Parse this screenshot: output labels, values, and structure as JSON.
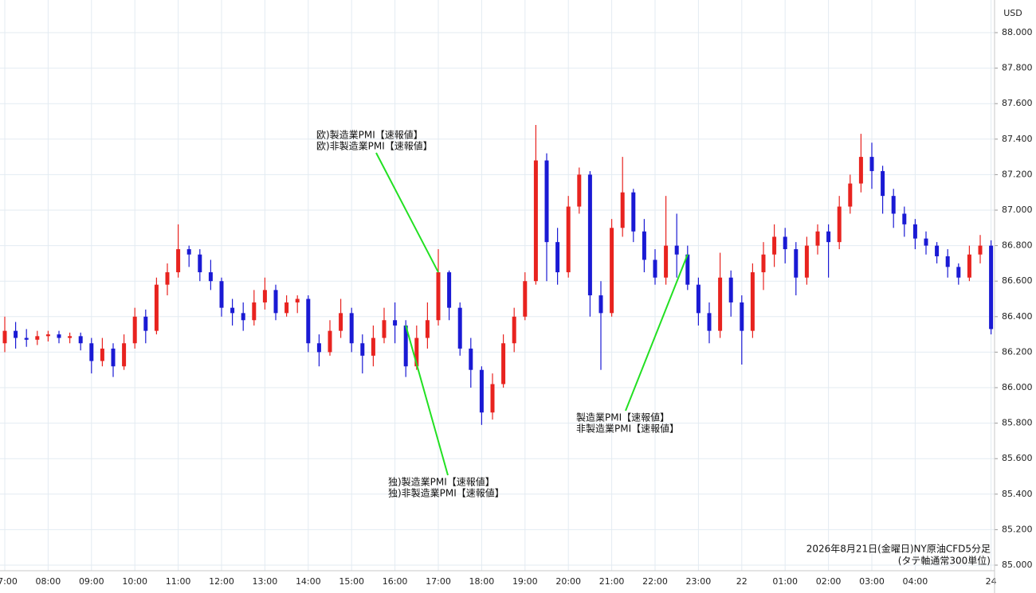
{
  "chart_data": {
    "type": "candlestick",
    "unit": "USD",
    "x": [
      "07:00",
      "07:15",
      "07:30",
      "07:45",
      "08:00",
      "08:15",
      "08:30",
      "08:45",
      "09:00",
      "09:15",
      "09:30",
      "09:45",
      "10:00",
      "10:15",
      "10:30",
      "10:45",
      "11:00",
      "11:15",
      "11:30",
      "11:45",
      "12:00",
      "12:15",
      "12:30",
      "12:45",
      "13:00",
      "13:15",
      "13:30",
      "13:45",
      "14:00",
      "14:15",
      "14:30",
      "14:45",
      "15:00",
      "15:15",
      "15:30",
      "15:45",
      "16:00",
      "16:15",
      "16:30",
      "16:45",
      "17:00",
      "17:15",
      "17:30",
      "17:45",
      "18:00",
      "18:15",
      "18:30",
      "18:45",
      "19:00",
      "19:15",
      "19:30",
      "19:45",
      "20:00",
      "20:15",
      "20:30",
      "20:45",
      "21:00",
      "21:15",
      "21:30",
      "21:45",
      "22:00",
      "22:15",
      "22:30",
      "22:45",
      "23:00",
      "23:15",
      "23:30",
      "23:45",
      "22",
      "00:15",
      "00:30",
      "00:45",
      "01:00",
      "01:15",
      "01:30",
      "01:45",
      "02:00",
      "02:15",
      "02:30",
      "02:45",
      "03:00",
      "03:15",
      "03:30",
      "03:45",
      "04:00",
      "04:15",
      "04:30",
      "04:45",
      "05:00",
      "05:15",
      "05:30",
      "24"
    ],
    "open": [
      86.25,
      86.32,
      86.28,
      86.27,
      86.29,
      86.3,
      86.28,
      86.29,
      86.25,
      86.15,
      86.22,
      86.12,
      86.25,
      86.4,
      86.32,
      86.58,
      86.65,
      86.78,
      86.75,
      86.65,
      86.6,
      86.45,
      86.42,
      86.38,
      86.48,
      86.55,
      86.42,
      86.48,
      86.5,
      86.25,
      86.2,
      86.32,
      86.42,
      86.25,
      86.18,
      86.28,
      86.38,
      86.35,
      86.12,
      86.28,
      86.38,
      86.65,
      86.45,
      86.22,
      86.1,
      85.86,
      86.02,
      86.25,
      86.4,
      86.6,
      87.28,
      86.82,
      86.65,
      87.02,
      87.2,
      86.52,
      86.42,
      86.9,
      87.1,
      86.88,
      86.72,
      86.62,
      86.8,
      86.75,
      86.58,
      86.42,
      86.32,
      86.62,
      86.48,
      86.32,
      86.65,
      86.75,
      86.85,
      86.78,
      86.62,
      86.8,
      86.88,
      86.82,
      87.02,
      87.15,
      87.3,
      87.22,
      87.08,
      86.98,
      86.92,
      86.84,
      86.8,
      86.74,
      86.68,
      86.62,
      86.75,
      86.8
    ],
    "high": [
      86.4,
      86.37,
      86.33,
      86.32,
      86.32,
      86.32,
      86.31,
      86.31,
      86.28,
      86.28,
      86.25,
      86.3,
      86.45,
      86.44,
      86.62,
      86.7,
      86.92,
      86.8,
      86.78,
      86.72,
      86.62,
      86.5,
      86.48,
      86.55,
      86.62,
      86.58,
      86.52,
      86.52,
      86.52,
      86.3,
      86.38,
      86.5,
      86.45,
      86.3,
      86.35,
      86.45,
      86.48,
      86.38,
      86.35,
      86.48,
      86.78,
      86.66,
      86.48,
      86.28,
      86.12,
      86.08,
      86.3,
      86.45,
      86.65,
      87.48,
      87.32,
      86.9,
      87.08,
      87.24,
      87.22,
      86.6,
      86.95,
      87.3,
      87.12,
      86.95,
      86.78,
      87.08,
      86.98,
      86.8,
      86.62,
      86.48,
      86.76,
      86.66,
      86.52,
      86.7,
      86.82,
      86.92,
      86.9,
      86.82,
      86.85,
      86.92,
      86.92,
      87.08,
      87.2,
      87.43,
      87.38,
      87.25,
      87.12,
      87.02,
      86.95,
      86.88,
      86.82,
      86.78,
      86.7,
      86.8,
      86.86,
      86.83
    ],
    "low": [
      86.2,
      86.22,
      86.23,
      86.24,
      86.26,
      86.25,
      86.25,
      86.21,
      86.08,
      86.12,
      86.06,
      86.1,
      86.22,
      86.25,
      86.3,
      86.52,
      86.62,
      86.68,
      86.6,
      86.55,
      86.4,
      86.35,
      86.32,
      86.35,
      86.44,
      86.38,
      86.4,
      86.42,
      86.2,
      86.12,
      86.18,
      86.28,
      86.2,
      86.08,
      86.12,
      86.25,
      86.25,
      86.06,
      86.1,
      86.22,
      86.35,
      86.38,
      86.18,
      86.0,
      85.79,
      85.82,
      86.0,
      86.2,
      86.38,
      86.58,
      86.6,
      86.58,
      86.62,
      86.98,
      86.4,
      86.1,
      86.4,
      86.85,
      86.82,
      86.65,
      86.58,
      86.58,
      86.62,
      86.55,
      86.35,
      86.25,
      86.28,
      86.4,
      86.13,
      86.28,
      86.55,
      86.68,
      86.7,
      86.52,
      86.58,
      86.75,
      86.62,
      86.78,
      86.98,
      87.1,
      87.12,
      86.98,
      86.9,
      86.85,
      86.78,
      86.75,
      86.7,
      86.62,
      86.58,
      86.6,
      86.7,
      86.3
    ],
    "close": [
      86.32,
      86.28,
      86.27,
      86.29,
      86.3,
      86.28,
      86.29,
      86.25,
      86.15,
      86.22,
      86.12,
      86.25,
      86.4,
      86.32,
      86.58,
      86.65,
      86.78,
      86.75,
      86.65,
      86.6,
      86.45,
      86.42,
      86.38,
      86.48,
      86.55,
      86.42,
      86.48,
      86.5,
      86.25,
      86.2,
      86.32,
      86.42,
      86.25,
      86.18,
      86.28,
      86.38,
      86.35,
      86.12,
      86.28,
      86.38,
      86.65,
      86.45,
      86.22,
      86.1,
      85.86,
      86.02,
      86.25,
      86.4,
      86.6,
      87.28,
      86.82,
      86.65,
      87.02,
      87.2,
      86.52,
      86.42,
      86.9,
      87.1,
      86.88,
      86.72,
      86.62,
      86.8,
      86.75,
      86.58,
      86.42,
      86.32,
      86.62,
      86.48,
      86.32,
      86.65,
      86.75,
      86.85,
      86.78,
      86.62,
      86.8,
      86.88,
      86.82,
      87.02,
      87.15,
      87.3,
      87.22,
      87.08,
      86.98,
      86.92,
      86.84,
      86.8,
      86.74,
      86.68,
      86.62,
      86.75,
      86.8,
      86.33
    ],
    "up_color": "#e8231f",
    "down_color": "#1a1ad4",
    "ylim": [
      85.0,
      88.1
    ],
    "yticks": [
      {
        "value": 85.0,
        "label": "85.000"
      },
      {
        "value": 85.2,
        "label": "85.200"
      },
      {
        "value": 85.4,
        "label": "85.400"
      },
      {
        "value": 85.6,
        "label": "85.600"
      },
      {
        "value": 85.8,
        "label": "85.800"
      },
      {
        "value": 86.0,
        "label": "86.000"
      },
      {
        "value": 86.2,
        "label": "86.200"
      },
      {
        "value": 86.4,
        "label": "86.400"
      },
      {
        "value": 86.6,
        "label": "86.600"
      },
      {
        "value": 86.8,
        "label": "86.800"
      },
      {
        "value": 87.0,
        "label": "87.000"
      },
      {
        "value": 87.2,
        "label": "87.200"
      },
      {
        "value": 87.4,
        "label": "87.400"
      },
      {
        "value": 87.6,
        "label": "87.600"
      },
      {
        "value": 87.8,
        "label": "87.800"
      },
      {
        "value": 88.0,
        "label": "88.000"
      }
    ],
    "xticks": [
      "07:00",
      "08:00",
      "09:00",
      "10:00",
      "11:00",
      "12:00",
      "13:00",
      "14:00",
      "15:00",
      "16:00",
      "17:00",
      "18:00",
      "19:00",
      "20:00",
      "21:00",
      "22:00",
      "23:00",
      "22",
      "01:00",
      "02:00",
      "03:00",
      "04:00",
      "24"
    ],
    "grid": true,
    "annotations": [
      {
        "x": "17:00",
        "text": [
          "欧)製造業PMI【速報値】",
          "欧)非製造業PMI【速報値】"
        ]
      },
      {
        "x": "16:15",
        "text": [
          "独)製造業PMI【速報値】",
          "独)非製造業PMI【速報値】"
        ]
      },
      {
        "x": "22:45",
        "text": [
          "製造業PMI【速報値】",
          "非製造業PMI【速報値】"
        ]
      }
    ],
    "notes": [
      "2026年8月21日(金曜日)NY原油CFD5分足",
      "(タテ軸通常300単位)"
    ]
  }
}
